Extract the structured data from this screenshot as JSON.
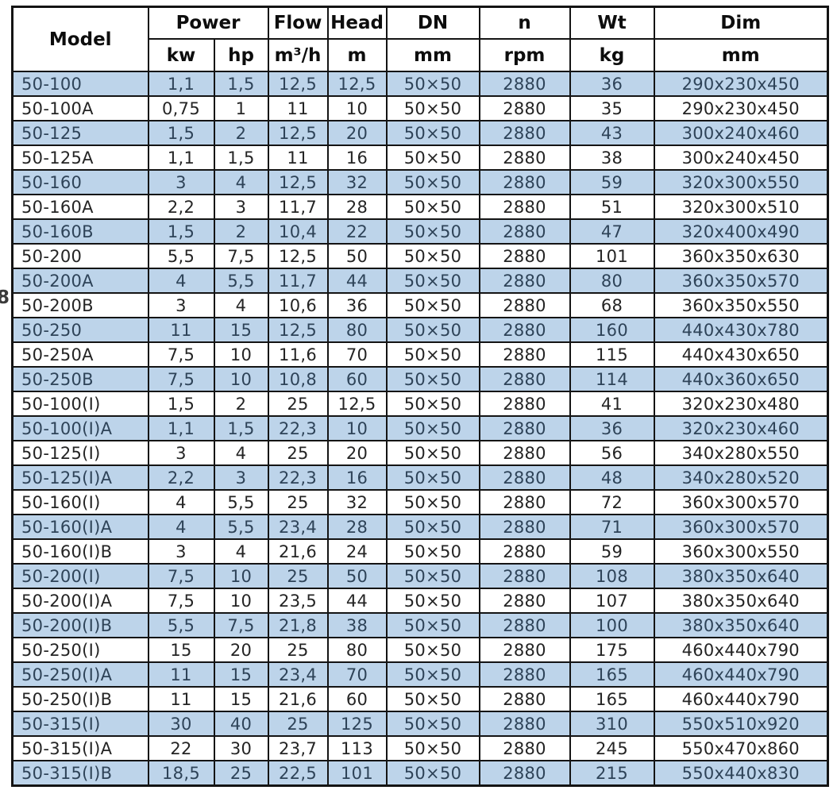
{
  "page": {
    "margin_note": "8"
  },
  "colors": {
    "row_highlight": "#bdd4ea",
    "row_plain": "#ffffff",
    "border": "#141414",
    "text_blue_rows": "#2e4358",
    "text_white_rows": "#242424"
  },
  "table": {
    "header": {
      "model": "Model",
      "power": "Power",
      "flow": "Flow",
      "head": "Head",
      "dn": "DN",
      "n": "n",
      "wt": "Wt",
      "dim": "Dim"
    },
    "units": {
      "kw": "kw",
      "hp": "hp",
      "flow": "m³/h",
      "head": "m",
      "dn": "mm",
      "n": "rpm",
      "wt": "kg",
      "dim": "mm"
    },
    "rows": [
      [
        "50-100",
        "1,1",
        "1,5",
        "12,5",
        "12,5",
        "50×50",
        "2880",
        "36",
        "290x230x450"
      ],
      [
        "50-100A",
        "0,75",
        "1",
        "11",
        "10",
        "50×50",
        "2880",
        "35",
        "290x230x450"
      ],
      [
        "50-125",
        "1,5",
        "2",
        "12,5",
        "20",
        "50×50",
        "2880",
        "43",
        "300x240x460"
      ],
      [
        "50-125A",
        "1,1",
        "1,5",
        "11",
        "16",
        "50×50",
        "2880",
        "38",
        "300x240x450"
      ],
      [
        "50-160",
        "3",
        "4",
        "12,5",
        "32",
        "50×50",
        "2880",
        "59",
        "320x300x550"
      ],
      [
        "50-160A",
        "2,2",
        "3",
        "11,7",
        "28",
        "50×50",
        "2880",
        "51",
        "320x300x510"
      ],
      [
        "50-160B",
        "1,5",
        "2",
        "10,4",
        "22",
        "50×50",
        "2880",
        "47",
        "320x400x490"
      ],
      [
        "50-200",
        "5,5",
        "7,5",
        "12,5",
        "50",
        "50×50",
        "2880",
        "101",
        "360x350x630"
      ],
      [
        "50-200A",
        "4",
        "5,5",
        "11,7",
        "44",
        "50×50",
        "2880",
        "80",
        "360x350x570"
      ],
      [
        "50-200B",
        "3",
        "4",
        "10,6",
        "36",
        "50×50",
        "2880",
        "68",
        "360x350x550"
      ],
      [
        "50-250",
        "11",
        "15",
        "12,5",
        "80",
        "50×50",
        "2880",
        "160",
        "440x430x780"
      ],
      [
        "50-250A",
        "7,5",
        "10",
        "11,6",
        "70",
        "50×50",
        "2880",
        "115",
        "440x430x650"
      ],
      [
        "50-250B",
        "7,5",
        "10",
        "10,8",
        "60",
        "50×50",
        "2880",
        "114",
        "440x360x650"
      ],
      [
        "50-100(I)",
        "1,5",
        "2",
        "25",
        "12,5",
        "50×50",
        "2880",
        "41",
        "320x230x480"
      ],
      [
        "50-100(I)A",
        "1,1",
        "1,5",
        "22,3",
        "10",
        "50×50",
        "2880",
        "36",
        "320x230x460"
      ],
      [
        "50-125(I)",
        "3",
        "4",
        "25",
        "20",
        "50×50",
        "2880",
        "56",
        "340x280x550"
      ],
      [
        "50-125(I)A",
        "2,2",
        "3",
        "22,3",
        "16",
        "50×50",
        "2880",
        "48",
        "340x280x520"
      ],
      [
        "50-160(I)",
        "4",
        "5,5",
        "25",
        "32",
        "50×50",
        "2880",
        "72",
        "360x300x570"
      ],
      [
        "50-160(I)A",
        "4",
        "5,5",
        "23,4",
        "28",
        "50×50",
        "2880",
        "71",
        "360x300x570"
      ],
      [
        "50-160(I)B",
        "3",
        "4",
        "21,6",
        "24",
        "50×50",
        "2880",
        "59",
        "360x300x550"
      ],
      [
        "50-200(I)",
        "7,5",
        "10",
        "25",
        "50",
        "50×50",
        "2880",
        "108",
        "380x350x640"
      ],
      [
        "50-200(I)A",
        "7,5",
        "10",
        "23,5",
        "44",
        "50×50",
        "2880",
        "107",
        "380x350x640"
      ],
      [
        "50-200(I)B",
        "5,5",
        "7,5",
        "21,8",
        "38",
        "50×50",
        "2880",
        "100",
        "380x350x640"
      ],
      [
        "50-250(I)",
        "15",
        "20",
        "25",
        "80",
        "50×50",
        "2880",
        "175",
        "460x440x790"
      ],
      [
        "50-250(I)A",
        "11",
        "15",
        "23,4",
        "70",
        "50×50",
        "2880",
        "165",
        "460x440x790"
      ],
      [
        "50-250(I)B",
        "11",
        "15",
        "21,6",
        "60",
        "50×50",
        "2880",
        "165",
        "460x440x790"
      ],
      [
        "50-315(I)",
        "30",
        "40",
        "25",
        "125",
        "50×50",
        "2880",
        "310",
        "550x510x920"
      ],
      [
        "50-315(I)A",
        "22",
        "30",
        "23,7",
        "113",
        "50×50",
        "2880",
        "245",
        "550x470x860"
      ],
      [
        "50-315(I)B",
        "18,5",
        "25",
        "22,5",
        "101",
        "50×50",
        "2880",
        "215",
        "550x440x830"
      ]
    ]
  }
}
